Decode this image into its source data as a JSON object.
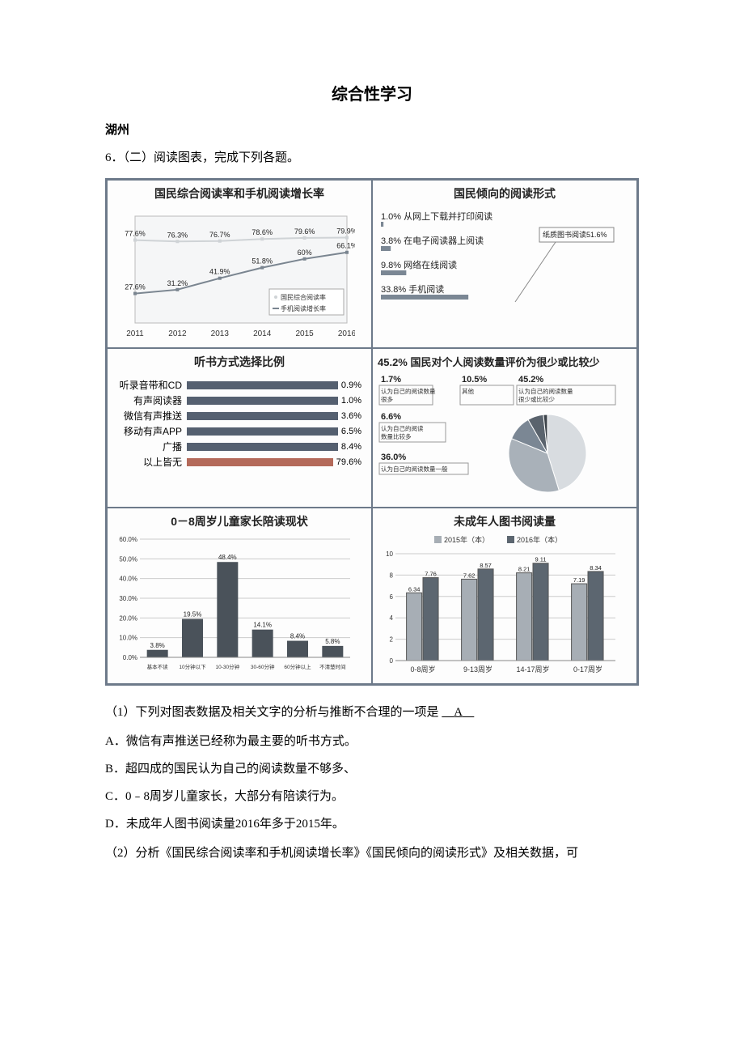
{
  "title": "综合性学习",
  "author": "湖州",
  "q_intro": "6．（二）阅读图表，完成下列各题。",
  "panel1": {
    "title": "国民综合阅读率和手机阅读增长率",
    "years": [
      2011,
      2012,
      2013,
      2014,
      2015,
      2016
    ],
    "series_a_label": "国民综合阅读率",
    "series_b_label": "手机阅读增长率",
    "a": [
      77.6,
      76.3,
      76.7,
      78.6,
      79.6,
      79.9
    ],
    "b": [
      27.6,
      31.2,
      41.9,
      51.8,
      60.0,
      66.1
    ],
    "a_labels": [
      "77.6%",
      "76.3%",
      "76.7%",
      "78.6%",
      "79.6%",
      "79.9%"
    ],
    "b_labels": [
      "27.6%",
      "31.2%",
      "41.9%",
      "51.8%",
      "60%",
      "66.1%"
    ],
    "a_color": "#cfd3d6",
    "b_color": "#7a8590",
    "text_color": "#222222",
    "y_max": 100
  },
  "panel2": {
    "title": "国民倾向的阅读形式",
    "items": [
      {
        "pct": "1.0%",
        "label": "从网上下载并打印阅读"
      },
      {
        "pct": "3.8%",
        "label": "在电子阅读器上阅读"
      },
      {
        "pct": "9.8%",
        "label": "网络在线阅读"
      },
      {
        "pct": "33.8%",
        "label": "手机阅读"
      }
    ],
    "callout_pct": "纸质图书阅读51.6%",
    "bar_color": "#7b8794"
  },
  "panel3": {
    "title": "听书方式选择比例",
    "rows": [
      {
        "label": "听录音带和CD",
        "pct": 0.9,
        "pct_txt": "0.9%"
      },
      {
        "label": "有声阅读器",
        "pct": 1.0,
        "pct_txt": "1.0%"
      },
      {
        "label": "微信有声推送",
        "pct": 3.6,
        "pct_txt": "3.6%"
      },
      {
        "label": "移动有声APP",
        "pct": 6.5,
        "pct_txt": "6.5%"
      },
      {
        "label": "广播",
        "pct": 8.4,
        "pct_txt": "8.4%"
      },
      {
        "label": "以上皆无",
        "pct": 79.6,
        "pct_txt": "79.6%"
      }
    ],
    "bar_color": "#556070",
    "alt_color": "#b46a5a",
    "max": 90
  },
  "panel4": {
    "title": "45.2% 国民对个人阅读数量评价为很少或比较少",
    "box1_pct": "1.7%",
    "box1_label": "认为自己的阅读数量很多",
    "box2_pct": "10.5%",
    "box2_label": "其他",
    "box3_pct": "45.2%",
    "box3_label": "认为自己的阅读数量很少或比较少",
    "box4_pct": "6.6%",
    "box4_label": "认为自己的阅读数量比较多",
    "box5_pct": "36.0%",
    "box5_label": "认为自己的阅读数量一般",
    "pie_slices": [
      {
        "v": 45.2,
        "c": "#d8dce0"
      },
      {
        "v": 36.0,
        "c": "#a9b1b9"
      },
      {
        "v": 10.5,
        "c": "#7b8794"
      },
      {
        "v": 6.6,
        "c": "#5a636d"
      },
      {
        "v": 1.7,
        "c": "#3c434a"
      }
    ]
  },
  "panel5": {
    "title": "0－8周岁儿童家长陪读现状",
    "cats": [
      "基本不读",
      "10分钟以下",
      "10-30分钟",
      "30-60分钟",
      "60分钟以上",
      "不清楚时间"
    ],
    "vals": [
      3.8,
      19.5,
      48.4,
      14.1,
      8.4,
      5.8
    ],
    "labels": [
      "3.8%",
      "19.5%",
      "48.4%",
      "14.1%",
      "8.4%",
      "5.8%"
    ],
    "y_max": 60,
    "y_ticks": [
      "0.0%",
      "10.0%",
      "20.0%",
      "30.0%",
      "40.0%",
      "50.0%",
      "60.0%"
    ],
    "bar_color": "#4a525a"
  },
  "panel6": {
    "title": "未成年人图书阅读量",
    "legend_a": "2015年（本）",
    "legend_b": "2016年（本）",
    "cats": [
      "0-8周岁",
      "9-13周岁",
      "14-17周岁",
      "0-17周岁"
    ],
    "a": [
      6.34,
      7.62,
      8.21,
      7.19
    ],
    "b": [
      7.76,
      8.57,
      9.11,
      8.34
    ],
    "a_labels": [
      "6.34",
      "7.62",
      "8.21",
      "7.19"
    ],
    "b_labels": [
      "7.76",
      "8.57",
      "9.11",
      "8.34"
    ],
    "y_max": 10,
    "a_color": "#a7aeb5",
    "b_color": "#5c6670"
  },
  "q1_stem": "（1）下列对图表数据及相关文字的分析与推断不合理的一项是",
  "q1_ans": "A",
  "q1_opts": [
    "A．微信有声推送已经称为最主要的听书方式。",
    "B．超四成的国民认为自己的阅读数量不够多、",
    "C．0﹣8周岁儿童家长，大部分有陪读行为。",
    "D．未成年人图书阅读量2016年多于2015年。"
  ],
  "q2": "（2）分析《国民综合阅读率和手机阅读增长率》《国民倾向的阅读形式》及相关数据，可"
}
